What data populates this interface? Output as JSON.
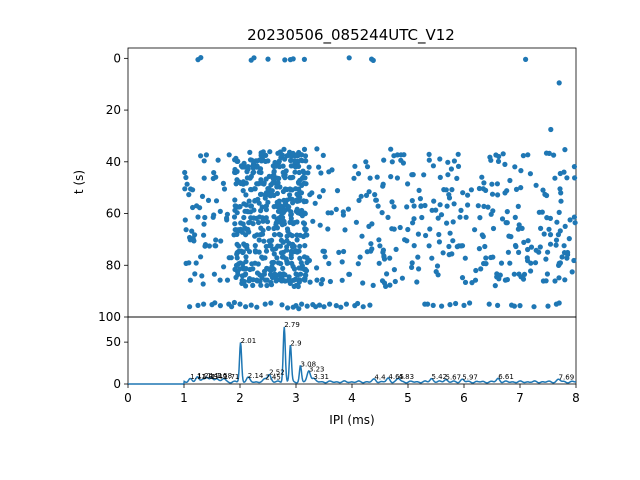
{
  "chart_data": [
    {
      "type": "scatter",
      "title": "20230506_085244UTC_V12",
      "xlabel": "",
      "ylabel": "t (s)",
      "xlim": [
        0,
        8
      ],
      "ylim": [
        100,
        -4
      ],
      "y_inverted": true,
      "yticks": [
        "0",
        "20",
        "40",
        "60",
        "80",
        "100"
      ],
      "color": "#1f77b4",
      "points_top": [
        [
          1.25,
          0.5
        ],
        [
          1.3,
          -0.3
        ],
        [
          2.2,
          0.7
        ],
        [
          2.25,
          -0.2
        ],
        [
          2.5,
          0.3
        ],
        [
          2.8,
          0.6
        ],
        [
          2.9,
          0.5
        ],
        [
          2.95,
          0.2
        ],
        [
          3.15,
          0.4
        ],
        [
          3.95,
          -0.2
        ],
        [
          4.35,
          0.3
        ],
        [
          4.38,
          0.8
        ],
        [
          7.1,
          0.4
        ],
        [
          7.7,
          9.5
        ],
        [
          7.55,
          27.5
        ]
      ],
      "points_bottom": [
        [
          1.1,
          96
        ],
        [
          1.25,
          95.5
        ],
        [
          1.35,
          95
        ],
        [
          1.5,
          95.2
        ],
        [
          1.55,
          94.5
        ],
        [
          1.65,
          95.6
        ],
        [
          1.8,
          95
        ],
        [
          1.85,
          96
        ],
        [
          1.9,
          94.4
        ],
        [
          2.0,
          95
        ],
        [
          2.1,
          96
        ],
        [
          2.2,
          95.4
        ],
        [
          2.3,
          96.2
        ],
        [
          2.45,
          95
        ],
        [
          2.55,
          94.6
        ],
        [
          2.75,
          95.3
        ],
        [
          2.85,
          96.5
        ],
        [
          2.95,
          96.2
        ],
        [
          3.0,
          95.6
        ],
        [
          3.05,
          96.8
        ],
        [
          3.1,
          95
        ],
        [
          3.2,
          95.8
        ],
        [
          3.3,
          95.2
        ],
        [
          3.35,
          96
        ],
        [
          3.42,
          95.4
        ],
        [
          3.5,
          96
        ],
        [
          3.6,
          95
        ],
        [
          3.72,
          95.6
        ],
        [
          3.8,
          96.2
        ],
        [
          3.9,
          95
        ],
        [
          4.05,
          95.6
        ],
        [
          4.1,
          94.8
        ],
        [
          4.2,
          96
        ],
        [
          4.32,
          95.4
        ],
        [
          5.3,
          95
        ],
        [
          5.35,
          95
        ],
        [
          5.45,
          95.5
        ],
        [
          5.6,
          95.8
        ],
        [
          5.75,
          95.2
        ],
        [
          5.85,
          94.8
        ],
        [
          6.0,
          95.5
        ],
        [
          6.1,
          94.6
        ],
        [
          6.45,
          95
        ],
        [
          6.6,
          95.5
        ],
        [
          6.85,
          95.4
        ],
        [
          6.9,
          95.8
        ],
        [
          7.0,
          95.6
        ],
        [
          7.25,
          96
        ],
        [
          7.5,
          95.8
        ],
        [
          7.65,
          95
        ],
        [
          7.7,
          94.6
        ]
      ],
      "dense_band": {
        "x_range": [
          1.0,
          8.0
        ],
        "t_range": [
          36,
          88
        ],
        "approx_point_count": 900,
        "peak_density_x": [
          1.9,
          3.2
        ]
      }
    },
    {
      "type": "line",
      "xlabel": "IPI (ms)",
      "ylabel": "",
      "xlim": [
        0,
        8
      ],
      "ylim": [
        0,
        80
      ],
      "xticks": [
        "0",
        "1",
        "2",
        "3",
        "4",
        "5",
        "6",
        "7",
        "8"
      ],
      "yticks": [
        "0",
        "50"
      ],
      "color": "#1f77b4",
      "peaks": [
        {
          "x": 1.11,
          "y": 5,
          "label": "1.11"
        },
        {
          "x": 1.24,
          "y": 6,
          "label": "1.24"
        },
        {
          "x": 1.33,
          "y": 5,
          "label": "1.33"
        },
        {
          "x": 1.41,
          "y": 6,
          "label": "1.41"
        },
        {
          "x": 1.49,
          "y": 5,
          "label": "1.49"
        },
        {
          "x": 1.58,
          "y": 6,
          "label": "1.58"
        },
        {
          "x": 1.71,
          "y": 5,
          "label": "1.71"
        },
        {
          "x": 2.01,
          "y": 48,
          "label": "2.01"
        },
        {
          "x": 2.14,
          "y": 6,
          "label": "2.14"
        },
        {
          "x": 2.45,
          "y": 4,
          "label": "2.45"
        },
        {
          "x": 2.52,
          "y": 10,
          "label": "2.52"
        },
        {
          "x": 2.79,
          "y": 67,
          "label": "2.79"
        },
        {
          "x": 2.9,
          "y": 45,
          "label": "2.9"
        },
        {
          "x": 3.08,
          "y": 20,
          "label": "3.08"
        },
        {
          "x": 3.23,
          "y": 14,
          "label": "3.23"
        },
        {
          "x": 3.31,
          "y": 5,
          "label": "3.31"
        },
        {
          "x": 4.4,
          "y": 4,
          "label": "4.4"
        },
        {
          "x": 4.65,
          "y": 5,
          "label": "4.65"
        },
        {
          "x": 4.83,
          "y": 5,
          "label": "4.83"
        },
        {
          "x": 5.42,
          "y": 5,
          "label": "5.42"
        },
        {
          "x": 5.67,
          "y": 4,
          "label": "5.67"
        },
        {
          "x": 5.97,
          "y": 4,
          "label": "5.97"
        },
        {
          "x": 6.61,
          "y": 5,
          "label": "6.61"
        },
        {
          "x": 7.69,
          "y": 4,
          "label": "7.69"
        }
      ]
    }
  ]
}
